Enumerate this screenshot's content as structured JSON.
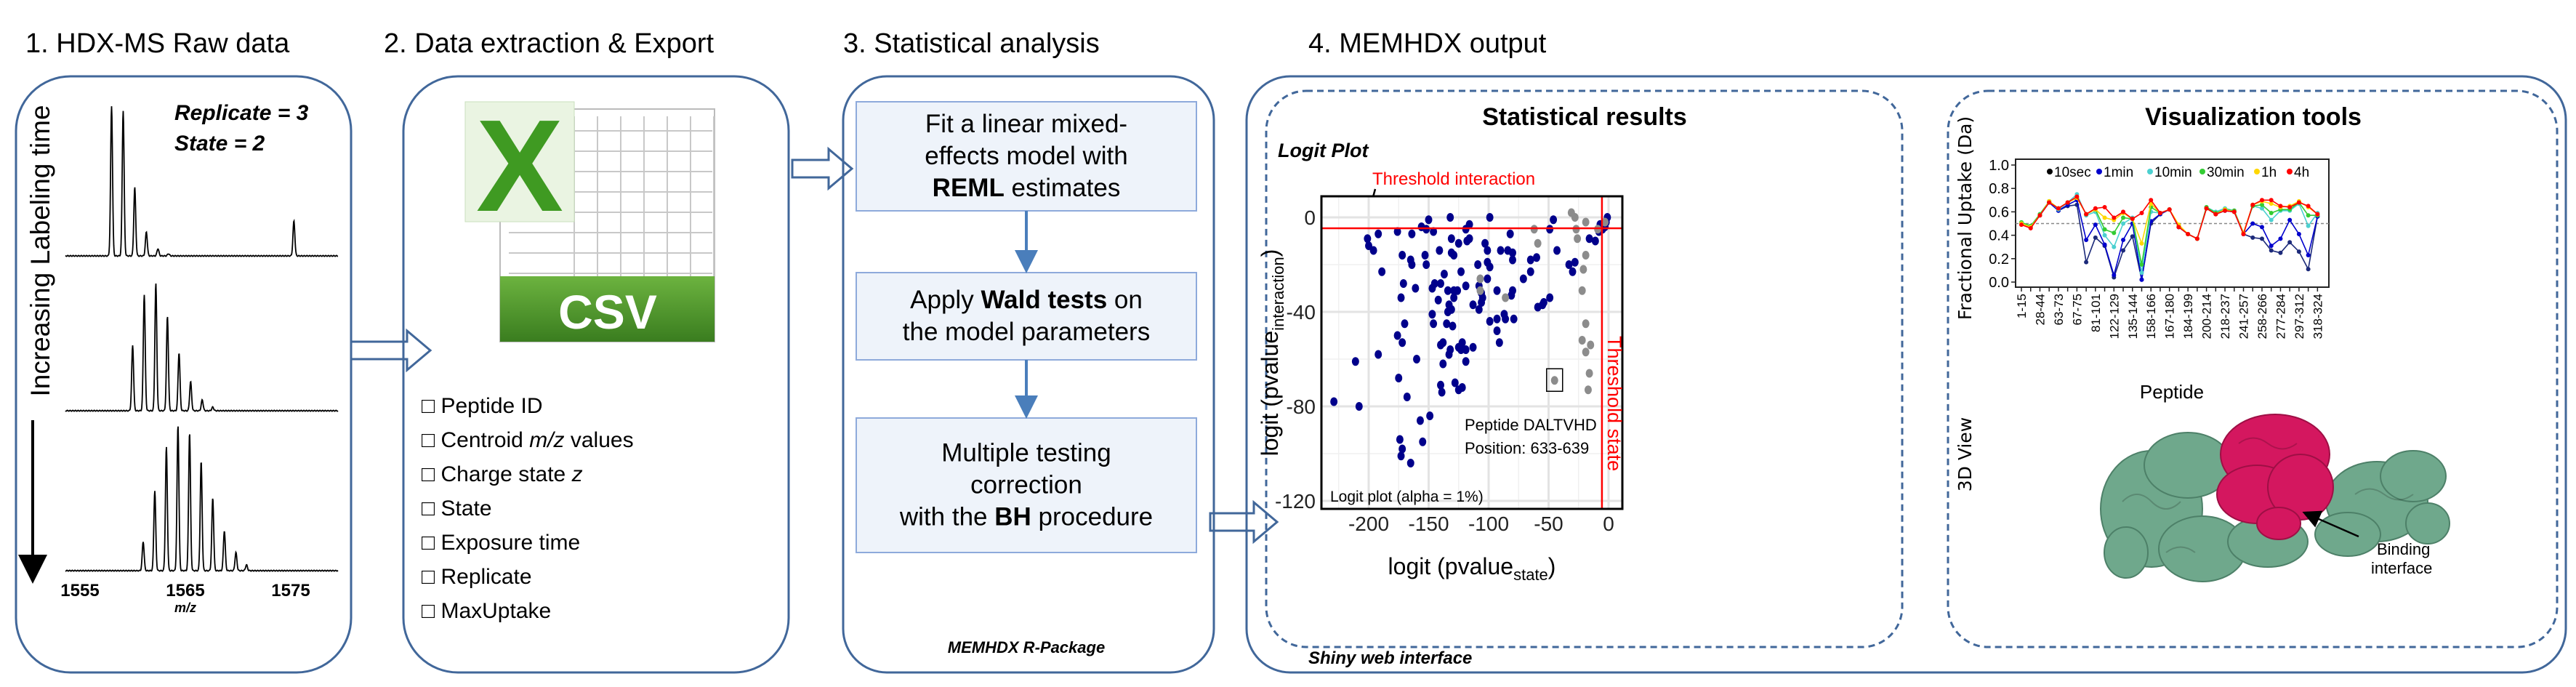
{
  "panel1": {
    "title": "1. HDX-MS Raw data",
    "replicate": "Replicate = 3",
    "state": "State = 2",
    "vertical_label": "Increasing Labeling time",
    "x_ticks": [
      "1555",
      "1565",
      "1575"
    ],
    "x_unit": "m/z"
  },
  "panel2": {
    "title": "2. Data extraction & Export",
    "logo_letter": "X",
    "file_label": "CSV",
    "checkbox_glyph": "□",
    "items": [
      {
        "pre": "Peptide ID",
        "em": "",
        "post": ""
      },
      {
        "pre": "Centroid ",
        "em": "m/z",
        "post": " values"
      },
      {
        "pre": "Charge state ",
        "em": "z",
        "post": ""
      },
      {
        "pre": "State",
        "em": "",
        "post": ""
      },
      {
        "pre": "Exposure time",
        "em": "",
        "post": ""
      },
      {
        "pre": "Replicate",
        "em": "",
        "post": ""
      },
      {
        "pre": "MaxUptake",
        "em": "",
        "post": ""
      }
    ]
  },
  "panel3": {
    "title": "3. Statistical analysis",
    "steps": [
      {
        "lines": [
          [
            {
              "t": "Fit a linear mixed-",
              "b": false
            }
          ],
          [
            {
              "t": "effects model with",
              "b": false
            }
          ],
          [
            {
              "t": "REML",
              "b": true
            },
            {
              "t": " estimates",
              "b": false
            }
          ]
        ]
      },
      {
        "lines": [
          [
            {
              "t": "Apply ",
              "b": false
            },
            {
              "t": "Wald tests",
              "b": true
            },
            {
              "t": " on",
              "b": false
            }
          ],
          [
            {
              "t": "the model parameters",
              "b": false
            }
          ]
        ]
      },
      {
        "lines": [
          [
            {
              "t": "Multiple testing",
              "b": false
            }
          ],
          [
            {
              "t": "correction",
              "b": false
            }
          ],
          [
            {
              "t": "with the ",
              "b": false
            },
            {
              "t": "BH",
              "b": true
            },
            {
              "t": " procedure",
              "b": false
            }
          ]
        ]
      }
    ],
    "caption": "MEMHDX R-Package"
  },
  "panel4": {
    "title": "4. MEMHDX output",
    "caption": "Shiny web interface",
    "stats_title": "Statistical results",
    "viz_title": "Visualization tools",
    "view3d_label": "3D View",
    "binding_label": [
      "Binding",
      "interface"
    ]
  },
  "logit_plot": {
    "title": "Logit Plot",
    "threshold_interaction_label": "Threshold interaction",
    "threshold_state_label": "Threshold state",
    "xlabel_main": "logit (pvalue",
    "xlabel_sub": "state",
    "xlabel_end": ")",
    "ylabel_main": "logit (pvalue",
    "ylabel_sub": "interaction",
    "ylabel_end": ")",
    "annotation": [
      "Peptide DALTVHD",
      "Position: 633-639"
    ],
    "footnote": "Logit plot (alpha = 1%)",
    "x_ticks": [
      "-200",
      "-150",
      "-100",
      "-50",
      "0"
    ],
    "y_ticks": [
      "0",
      "-40",
      "-80",
      "-120"
    ]
  },
  "chart_data": [
    {
      "type": "scatter",
      "title": "Logit Plot",
      "xlabel": "logit (pvalue_state)",
      "ylabel": "logit (pvalue_interaction)",
      "xlim": [
        -240,
        11
      ],
      "ylim": [
        -123,
        9
      ],
      "grid": true,
      "threshold_state": -5.5,
      "threshold_interaction": -4.6,
      "colors": {
        "significant": "#00008b",
        "not_significant": "#8c8c8c",
        "threshold": "#ff0000"
      },
      "significant_points": [
        [
          -201,
          -9
        ],
        [
          -200,
          -12
        ],
        [
          -196,
          -14
        ],
        [
          -192,
          -7
        ],
        [
          -189,
          -23
        ],
        [
          -176,
          -6
        ],
        [
          -172,
          -16
        ],
        [
          -171,
          -28
        ],
        [
          -173,
          -34
        ],
        [
          -170,
          -45
        ],
        [
          -176,
          -50
        ],
        [
          -172,
          -53
        ],
        [
          -192,
          -58
        ],
        [
          -211,
          -61
        ],
        [
          -229,
          -78
        ],
        [
          -208,
          -80
        ],
        [
          -175,
          -68
        ],
        [
          -168,
          -76
        ],
        [
          -160,
          -60
        ],
        [
          -161,
          -30
        ],
        [
          -164,
          -7
        ],
        [
          -165,
          -18
        ],
        [
          -164,
          -20
        ],
        [
          -156,
          -4
        ],
        [
          -152,
          -5
        ],
        [
          -150,
          -1
        ],
        [
          -146,
          -6
        ],
        [
          -153,
          -16
        ],
        [
          -152,
          -20
        ],
        [
          -147,
          -30
        ],
        [
          -145,
          -28
        ],
        [
          -142,
          -35
        ],
        [
          -147,
          -41
        ],
        [
          -146,
          -45
        ],
        [
          -141,
          -14
        ],
        [
          -140,
          -28
        ],
        [
          -137,
          -24
        ],
        [
          -134,
          -31
        ],
        [
          -133,
          -37
        ],
        [
          -132,
          0
        ],
        [
          -131,
          -9
        ],
        [
          -131,
          -15
        ],
        [
          -129,
          -16
        ],
        [
          -125,
          -11
        ],
        [
          -123,
          -23
        ],
        [
          -129,
          -31
        ],
        [
          -126,
          -31
        ],
        [
          -129,
          -34
        ],
        [
          -131,
          -39
        ],
        [
          -134,
          -40
        ],
        [
          -135,
          -45
        ],
        [
          -130,
          -46
        ],
        [
          -140,
          -54
        ],
        [
          -138,
          -53
        ],
        [
          -132,
          -56
        ],
        [
          -133,
          -58
        ],
        [
          -125,
          -55
        ],
        [
          -122,
          -53
        ],
        [
          -123,
          -56
        ],
        [
          -119,
          -56
        ],
        [
          -113,
          -55
        ],
        [
          -138,
          -62
        ],
        [
          -119,
          -61
        ],
        [
          -140,
          -71
        ],
        [
          -139,
          -74
        ],
        [
          -128,
          -70
        ],
        [
          -125,
          -73
        ],
        [
          -122,
          -72
        ],
        [
          -119,
          -29
        ],
        [
          -119,
          -5
        ],
        [
          -116,
          -3
        ],
        [
          -116,
          -9
        ],
        [
          -118,
          -10
        ],
        [
          -113,
          -37
        ],
        [
          -109,
          -20
        ],
        [
          -108,
          -29
        ],
        [
          -106,
          -32
        ],
        [
          -105,
          -34
        ],
        [
          -106,
          -36
        ],
        [
          -108,
          -39
        ],
        [
          -103,
          -11
        ],
        [
          -101,
          -14
        ],
        [
          -101,
          -26
        ],
        [
          -101,
          -19
        ],
        [
          -99,
          -21
        ],
        [
          -99,
          0
        ],
        [
          -99,
          -44
        ],
        [
          -93,
          -31
        ],
        [
          -93,
          -43
        ],
        [
          -93,
          -48
        ],
        [
          -91,
          -53
        ],
        [
          -90,
          -14
        ],
        [
          -87,
          -41
        ],
        [
          -86,
          -43
        ],
        [
          -84,
          -14
        ],
        [
          -82,
          -7
        ],
        [
          -80,
          -15
        ],
        [
          -80,
          -18
        ],
        [
          -80,
          -31
        ],
        [
          -81,
          -33
        ],
        [
          -79,
          -43
        ],
        [
          -71,
          -26
        ],
        [
          -65,
          -23
        ],
        [
          -65,
          -18
        ],
        [
          -60,
          -17
        ],
        [
          -59,
          -38
        ],
        [
          -55,
          -37
        ],
        [
          -54,
          -36
        ],
        [
          -49,
          -34
        ],
        [
          -49,
          -5
        ],
        [
          -46,
          -1
        ],
        [
          -43,
          -14
        ],
        [
          -33,
          -20
        ],
        [
          -30,
          -23
        ],
        [
          -28,
          -19
        ],
        [
          -16,
          -9
        ],
        [
          -11,
          -10
        ],
        [
          -8,
          -6
        ],
        [
          -7,
          -3
        ],
        [
          -5,
          -5
        ],
        [
          -3,
          -4
        ],
        [
          -2,
          -2
        ],
        [
          -1,
          0
        ],
        [
          -157,
          -86
        ],
        [
          -149,
          -84
        ],
        [
          -174,
          -94
        ],
        [
          -172,
          -98
        ],
        [
          -173,
          -101
        ],
        [
          -155,
          -95
        ],
        [
          -165,
          -104
        ]
      ],
      "non_significant_points": [
        [
          -62,
          -5
        ],
        [
          -59,
          -11
        ],
        [
          -31,
          2
        ],
        [
          -28,
          0
        ],
        [
          -27,
          -5
        ],
        [
          -26,
          -9
        ],
        [
          -19,
          -2
        ],
        [
          -19,
          -16
        ],
        [
          -21,
          -22
        ],
        [
          -22,
          -31
        ],
        [
          -19,
          -45
        ],
        [
          -22,
          -52
        ],
        [
          -15,
          -54
        ],
        [
          -19,
          -57
        ],
        [
          -16,
          -66
        ],
        [
          -17,
          -73
        ],
        [
          -107,
          -26
        ],
        [
          -107,
          -31
        ],
        [
          -86,
          -34
        ],
        [
          -9,
          -5
        ],
        [
          -3,
          -2
        ]
      ],
      "highlighted_point": [
        -45,
        -69
      ]
    },
    {
      "type": "line",
      "xlabel": "Peptide",
      "ylabel": "Fractional Uptake (Da)",
      "ylim": [
        0,
        1.0
      ],
      "y_ticks": [
        "0.0",
        "0.2",
        "0.4",
        "0.6",
        "0.8",
        "1.0"
      ],
      "reference_line": 0.5,
      "legend_position": "top",
      "categories": [
        "1-15",
        "",
        "28-44",
        "",
        "63-73",
        "",
        "67-75",
        "",
        "81-101",
        "",
        "122-129",
        "",
        "135-144",
        "",
        "158-166",
        "",
        "167-180",
        "",
        "184-199",
        "",
        "200-214",
        "",
        "218-237",
        "",
        "241-257",
        "",
        "258-266",
        "",
        "277-284",
        "",
        "297-312",
        "",
        "318-324"
      ],
      "series": [
        {
          "name": "10sec",
          "color": "#1c2a7a",
          "values": [
            0.5,
            0.47,
            0.57,
            0.68,
            0.61,
            0.65,
            0.66,
            0.17,
            0.38,
            0.31,
            0.04,
            0.27,
            0.39,
            0.02,
            0.5,
            0.58,
            0.62,
            0.47,
            0.41,
            0.37,
            0.63,
            0.58,
            0.61,
            0.6,
            0.41,
            0.38,
            0.37,
            0.27,
            0.25,
            0.34,
            0.26,
            0.11,
            0.56
          ]
        },
        {
          "name": "1min",
          "color": "#0000cc",
          "values": [
            0.5,
            0.47,
            0.57,
            0.68,
            0.61,
            0.66,
            0.7,
            0.36,
            0.49,
            0.32,
            0.06,
            0.36,
            0.5,
            0.02,
            0.52,
            0.58,
            0.62,
            0.47,
            0.41,
            0.37,
            0.63,
            0.58,
            0.61,
            0.6,
            0.41,
            0.5,
            0.47,
            0.31,
            0.37,
            0.53,
            0.41,
            0.23,
            0.56
          ]
        },
        {
          "name": "10min",
          "color": "#4cd0d0",
          "values": [
            0.51,
            0.47,
            0.58,
            0.69,
            0.62,
            0.68,
            0.75,
            0.57,
            0.6,
            0.4,
            0.3,
            0.5,
            0.55,
            0.08,
            0.6,
            0.59,
            0.62,
            0.48,
            0.41,
            0.37,
            0.64,
            0.6,
            0.63,
            0.61,
            0.42,
            0.65,
            0.63,
            0.53,
            0.61,
            0.61,
            0.67,
            0.48,
            0.59
          ]
        },
        {
          "name": "30min",
          "color": "#33cc33",
          "values": [
            0.51,
            0.48,
            0.58,
            0.69,
            0.63,
            0.68,
            0.72,
            0.58,
            0.62,
            0.45,
            0.42,
            0.55,
            0.54,
            0.15,
            0.64,
            0.59,
            0.62,
            0.48,
            0.41,
            0.37,
            0.64,
            0.59,
            0.62,
            0.61,
            0.42,
            0.65,
            0.66,
            0.59,
            0.62,
            0.62,
            0.68,
            0.57,
            0.57
          ]
        },
        {
          "name": "1h",
          "color": "#ffd700",
          "values": [
            0.5,
            0.47,
            0.57,
            0.69,
            0.63,
            0.68,
            0.72,
            0.58,
            0.62,
            0.55,
            0.53,
            0.59,
            0.54,
            0.33,
            0.67,
            0.59,
            0.62,
            0.49,
            0.41,
            0.37,
            0.63,
            0.58,
            0.62,
            0.6,
            0.42,
            0.66,
            0.69,
            0.67,
            0.64,
            0.65,
            0.69,
            0.64,
            0.58
          ]
        },
        {
          "name": "4h",
          "color": "#ff0000",
          "values": [
            0.49,
            0.46,
            0.57,
            0.68,
            0.63,
            0.68,
            0.73,
            0.58,
            0.63,
            0.64,
            0.55,
            0.6,
            0.54,
            0.59,
            0.7,
            0.59,
            0.62,
            0.47,
            0.41,
            0.37,
            0.63,
            0.58,
            0.61,
            0.6,
            0.41,
            0.66,
            0.7,
            0.7,
            0.65,
            0.64,
            0.68,
            0.65,
            0.58
          ]
        }
      ]
    }
  ],
  "colors": {
    "panel_border": "#41679a",
    "step_fill": "#eef3fa",
    "step_border": "#8eaadb",
    "csv_green": "#3f8f26",
    "protein_green": "#6fa88c",
    "protein_magenta": "#d4175f"
  }
}
